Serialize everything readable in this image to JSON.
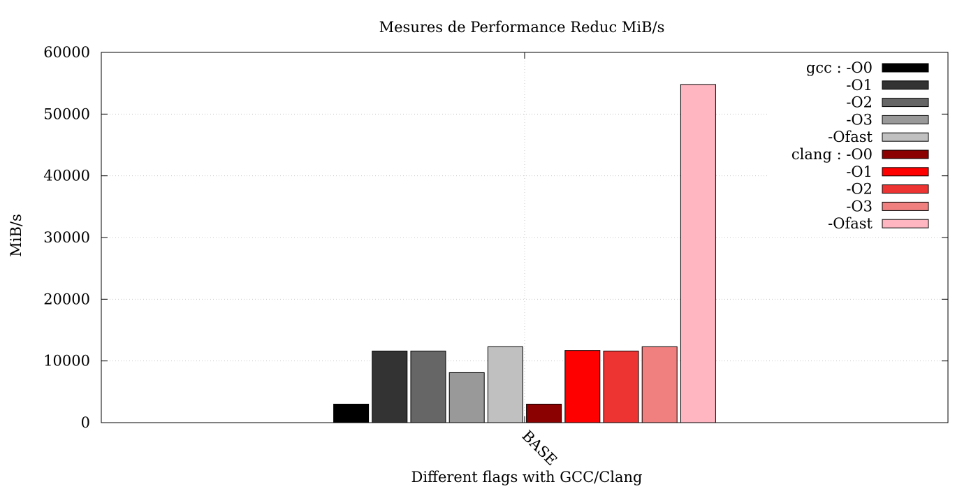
{
  "chart_data": {
    "type": "bar",
    "title": "Mesures de Performance Reduc MiB/s",
    "xlabel": "Different flags with GCC/Clang",
    "ylabel": "MiB/s",
    "categories": [
      "BASE"
    ],
    "ylim": [
      0,
      60000
    ],
    "yticks": [
      0,
      10000,
      20000,
      30000,
      40000,
      50000,
      60000
    ],
    "grid": true,
    "legend_position": "top-right",
    "series": [
      {
        "name": "gcc : -O0",
        "values": [
          3000
        ],
        "color": "#000000"
      },
      {
        "name": "-O1",
        "values": [
          11600
        ],
        "color": "#333333"
      },
      {
        "name": "-O2",
        "values": [
          11600
        ],
        "color": "#666666"
      },
      {
        "name": "-O3",
        "values": [
          8100
        ],
        "color": "#999999"
      },
      {
        "name": "-Ofast",
        "values": [
          12300
        ],
        "color": "#c0c0c0"
      },
      {
        "name": "clang : -O0",
        "values": [
          3000
        ],
        "color": "#8b0000"
      },
      {
        "name": "-O1",
        "values": [
          11700
        ],
        "color": "#ff0000"
      },
      {
        "name": "-O2",
        "values": [
          11600
        ],
        "color": "#ee3333"
      },
      {
        "name": "-O3",
        "values": [
          12300
        ],
        "color": "#f08080"
      },
      {
        "name": "-Ofast",
        "values": [
          54800
        ],
        "color": "#ffb6c1"
      }
    ]
  }
}
